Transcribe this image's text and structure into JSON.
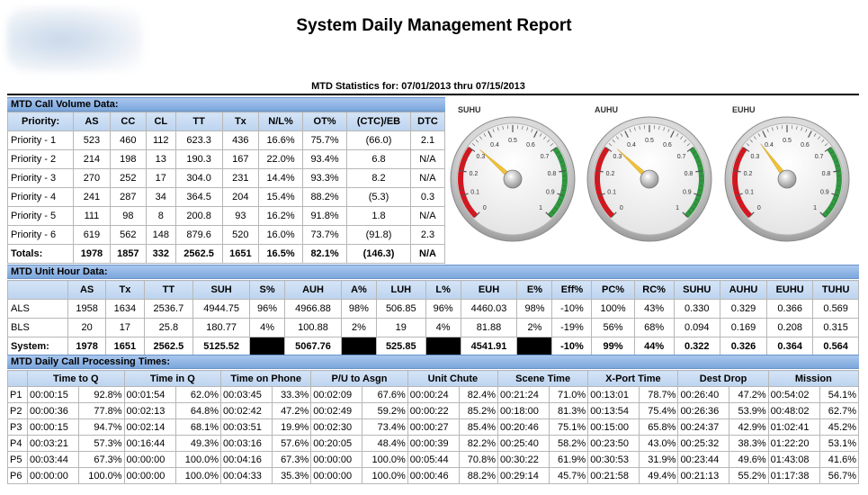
{
  "header": {
    "title": "System Daily Management Report",
    "subtitle": "MTD Statistics for: 07/01/2013 thru 07/15/2013"
  },
  "call_volume": {
    "section_label": "MTD Call Volume Data:",
    "columns": [
      "Priority:",
      "AS",
      "CC",
      "CL",
      "TT",
      "Tx",
      "N/L%",
      "OT%",
      "(CTC)/EB",
      "DTC"
    ],
    "rows": [
      [
        "Priority - 1",
        "523",
        "460",
        "112",
        "623.3",
        "436",
        "16.6%",
        "75.7%",
        "(66.0)",
        "2.1"
      ],
      [
        "Priority - 2",
        "214",
        "198",
        "13",
        "190.3",
        "167",
        "22.0%",
        "93.4%",
        "6.8",
        "N/A"
      ],
      [
        "Priority - 3",
        "270",
        "252",
        "17",
        "304.0",
        "231",
        "14.4%",
        "93.3%",
        "8.2",
        "N/A"
      ],
      [
        "Priority - 4",
        "241",
        "287",
        "34",
        "364.5",
        "204",
        "15.4%",
        "88.2%",
        "(5.3)",
        "0.3"
      ],
      [
        "Priority - 5",
        "111",
        "98",
        "8",
        "200.8",
        "93",
        "16.2%",
        "91.8%",
        "1.8",
        "N/A"
      ],
      [
        "Priority - 6",
        "619",
        "562",
        "148",
        "879.6",
        "520",
        "16.0%",
        "73.7%",
        "(91.8)",
        "2.3"
      ]
    ],
    "totals": [
      "Totals:",
      "1978",
      "1857",
      "332",
      "2562.5",
      "1651",
      "16.5%",
      "82.1%",
      "(146.3)",
      "N/A"
    ]
  },
  "gauges": [
    {
      "label": "SUHU",
      "value": 0.322
    },
    {
      "label": "AUHU",
      "value": 0.326
    },
    {
      "label": "EUHU",
      "value": 0.364
    }
  ],
  "gauge_ticks": [
    "0",
    "0.1",
    "0.2",
    "0.3",
    "0.4",
    "0.5",
    "0.6",
    "0.7",
    "0.8",
    "0.9",
    "1"
  ],
  "gauge_colors": {
    "low": "#d9141c",
    "high": "#2e9a3e"
  },
  "unit_hour": {
    "section_label": "MTD Unit Hour Data:",
    "columns": [
      "",
      "AS",
      "Tx",
      "TT",
      "SUH",
      "S%",
      "AUH",
      "A%",
      "LUH",
      "L%",
      "EUH",
      "E%",
      "Eff%",
      "PC%",
      "RC%",
      "SUHU",
      "AUHU",
      "EUHU",
      "TUHU"
    ],
    "rows": [
      [
        "ALS",
        "1958",
        "1634",
        "2536.7",
        "4944.75",
        "96%",
        "4966.88",
        "98%",
        "506.85",
        "96%",
        "4460.03",
        "98%",
        "-10%",
        "100%",
        "43%",
        "0.330",
        "0.329",
        "0.366",
        "0.569"
      ],
      [
        "BLS",
        "20",
        "17",
        "25.8",
        "180.77",
        "4%",
        "100.88",
        "2%",
        "19",
        "4%",
        "81.88",
        "2%",
        "-19%",
        "56%",
        "68%",
        "0.094",
        "0.169",
        "0.208",
        "0.315"
      ]
    ],
    "system": [
      "System:",
      "1978",
      "1651",
      "2562.5",
      "5125.52",
      "",
      "5067.76",
      "",
      "525.85",
      "",
      "4541.91",
      "",
      "-10%",
      "99%",
      "44%",
      "0.322",
      "0.326",
      "0.364",
      "0.564"
    ]
  },
  "processing": {
    "section_label": "MTD Daily Call Processing Times:",
    "columns": [
      "Time to Q",
      "Time in Q",
      "Time on Phone",
      "P/U to Asgn",
      "Unit Chute",
      "Scene Time",
      "X-Port Time",
      "Dest Drop",
      "Mission"
    ],
    "rows": [
      [
        "P1",
        "00:00:15",
        "92.8%",
        "00:01:54",
        "62.0%",
        "00:03:45",
        "33.3%",
        "00:02:09",
        "67.6%",
        "00:00:24",
        "82.4%",
        "00:21:24",
        "71.0%",
        "00:13:01",
        "78.7%",
        "00:26:40",
        "47.2%",
        "00:54:02",
        "54.1%"
      ],
      [
        "P2",
        "00:00:36",
        "77.8%",
        "00:02:13",
        "64.8%",
        "00:02:42",
        "47.2%",
        "00:02:49",
        "59.2%",
        "00:00:22",
        "85.2%",
        "00:18:00",
        "81.3%",
        "00:13:54",
        "75.4%",
        "00:26:36",
        "53.9%",
        "00:48:02",
        "62.7%"
      ],
      [
        "P3",
        "00:00:15",
        "94.7%",
        "00:02:14",
        "68.1%",
        "00:03:51",
        "19.9%",
        "00:02:30",
        "73.4%",
        "00:00:27",
        "85.4%",
        "00:20:46",
        "75.1%",
        "00:15:00",
        "65.8%",
        "00:24:37",
        "42.9%",
        "01:02:41",
        "45.2%"
      ],
      [
        "P4",
        "00:03:21",
        "57.3%",
        "00:16:44",
        "49.3%",
        "00:03:16",
        "57.6%",
        "00:20:05",
        "48.4%",
        "00:00:39",
        "82.2%",
        "00:25:40",
        "58.2%",
        "00:23:50",
        "43.0%",
        "00:25:32",
        "38.3%",
        "01:22:20",
        "53.1%"
      ],
      [
        "P5",
        "00:03:44",
        "67.3%",
        "00:00:00",
        "100.0%",
        "00:04:16",
        "67.3%",
        "00:00:00",
        "100.0%",
        "00:05:44",
        "70.8%",
        "00:30:22",
        "61.9%",
        "00:30:53",
        "31.9%",
        "00:23:44",
        "49.6%",
        "01:43:08",
        "41.6%"
      ],
      [
        "P6",
        "00:00:00",
        "100.0%",
        "00:00:00",
        "100.0%",
        "00:04:33",
        "35.3%",
        "00:00:00",
        "100.0%",
        "00:00:46",
        "88.2%",
        "00:29:14",
        "45.7%",
        "00:21:58",
        "49.4%",
        "00:21:13",
        "55.2%",
        "01:17:38",
        "56.7%"
      ]
    ]
  }
}
